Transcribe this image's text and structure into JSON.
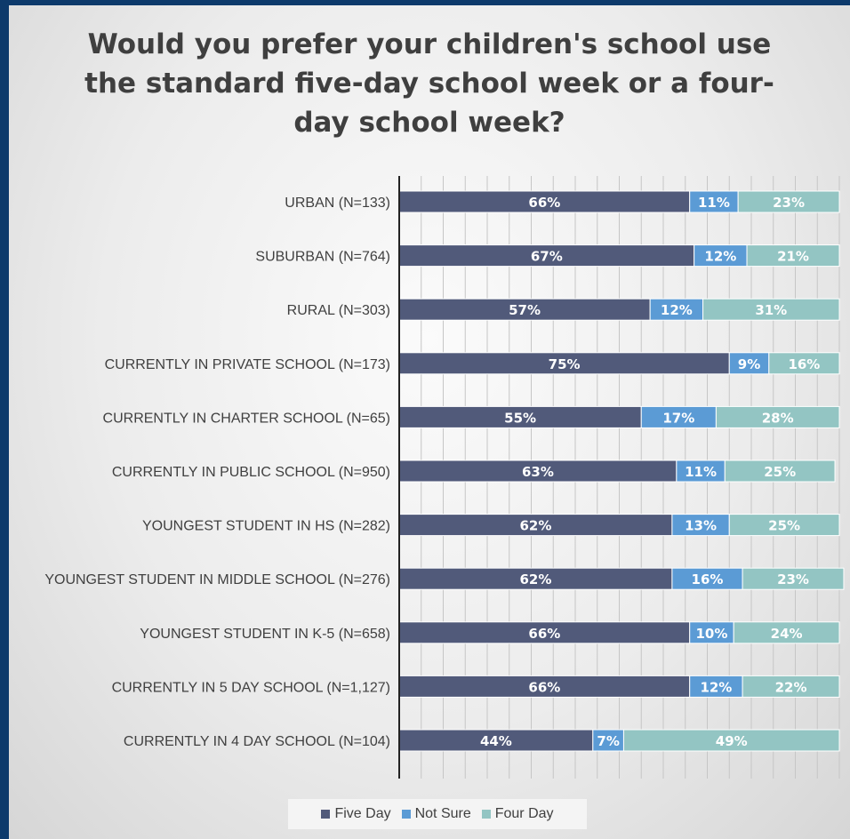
{
  "chart_data": {
    "type": "bar",
    "orientation": "horizontal",
    "stacked": true,
    "title": "Would you prefer your children's school use the standard five-day school week or a four-day school week?",
    "title_lines": [
      "Would you prefer your children's school use",
      "the standard five-day school week or a four-",
      "day school week?"
    ],
    "categories": [
      "URBAN (N=133)",
      "SUBURBAN (N=764)",
      "RURAL (N=303)",
      "CURRENTLY IN PRIVATE SCHOOL (N=173)",
      "CURRENTLY IN CHARTER SCHOOL (N=65)",
      "CURRENTLY IN PUBLIC SCHOOL (N=950)",
      "YOUNGEST STUDENT IN HS (N=282)",
      "YOUNGEST STUDENT IN MIDDLE SCHOOL (N=276)",
      "YOUNGEST STUDENT IN K-5 (N=658)",
      "CURRENTLY IN 5 DAY SCHOOL (N=1,127)",
      "CURRENTLY IN 4 DAY SCHOOL (N=104)"
    ],
    "series": [
      {
        "name": "Five Day",
        "color": "#515a7a",
        "values": [
          66,
          67,
          57,
          75,
          55,
          63,
          62,
          62,
          66,
          66,
          44
        ]
      },
      {
        "name": "Not Sure",
        "color": "#5b9bd5",
        "values": [
          11,
          12,
          12,
          9,
          17,
          11,
          13,
          16,
          10,
          12,
          7
        ]
      },
      {
        "name": "Four Day",
        "color": "#93c5c3",
        "values": [
          23,
          21,
          31,
          16,
          28,
          25,
          25,
          23,
          24,
          22,
          49
        ]
      }
    ],
    "value_suffix": "%",
    "xlim": [
      0,
      100
    ],
    "grid": true,
    "legend_position": "bottom"
  }
}
